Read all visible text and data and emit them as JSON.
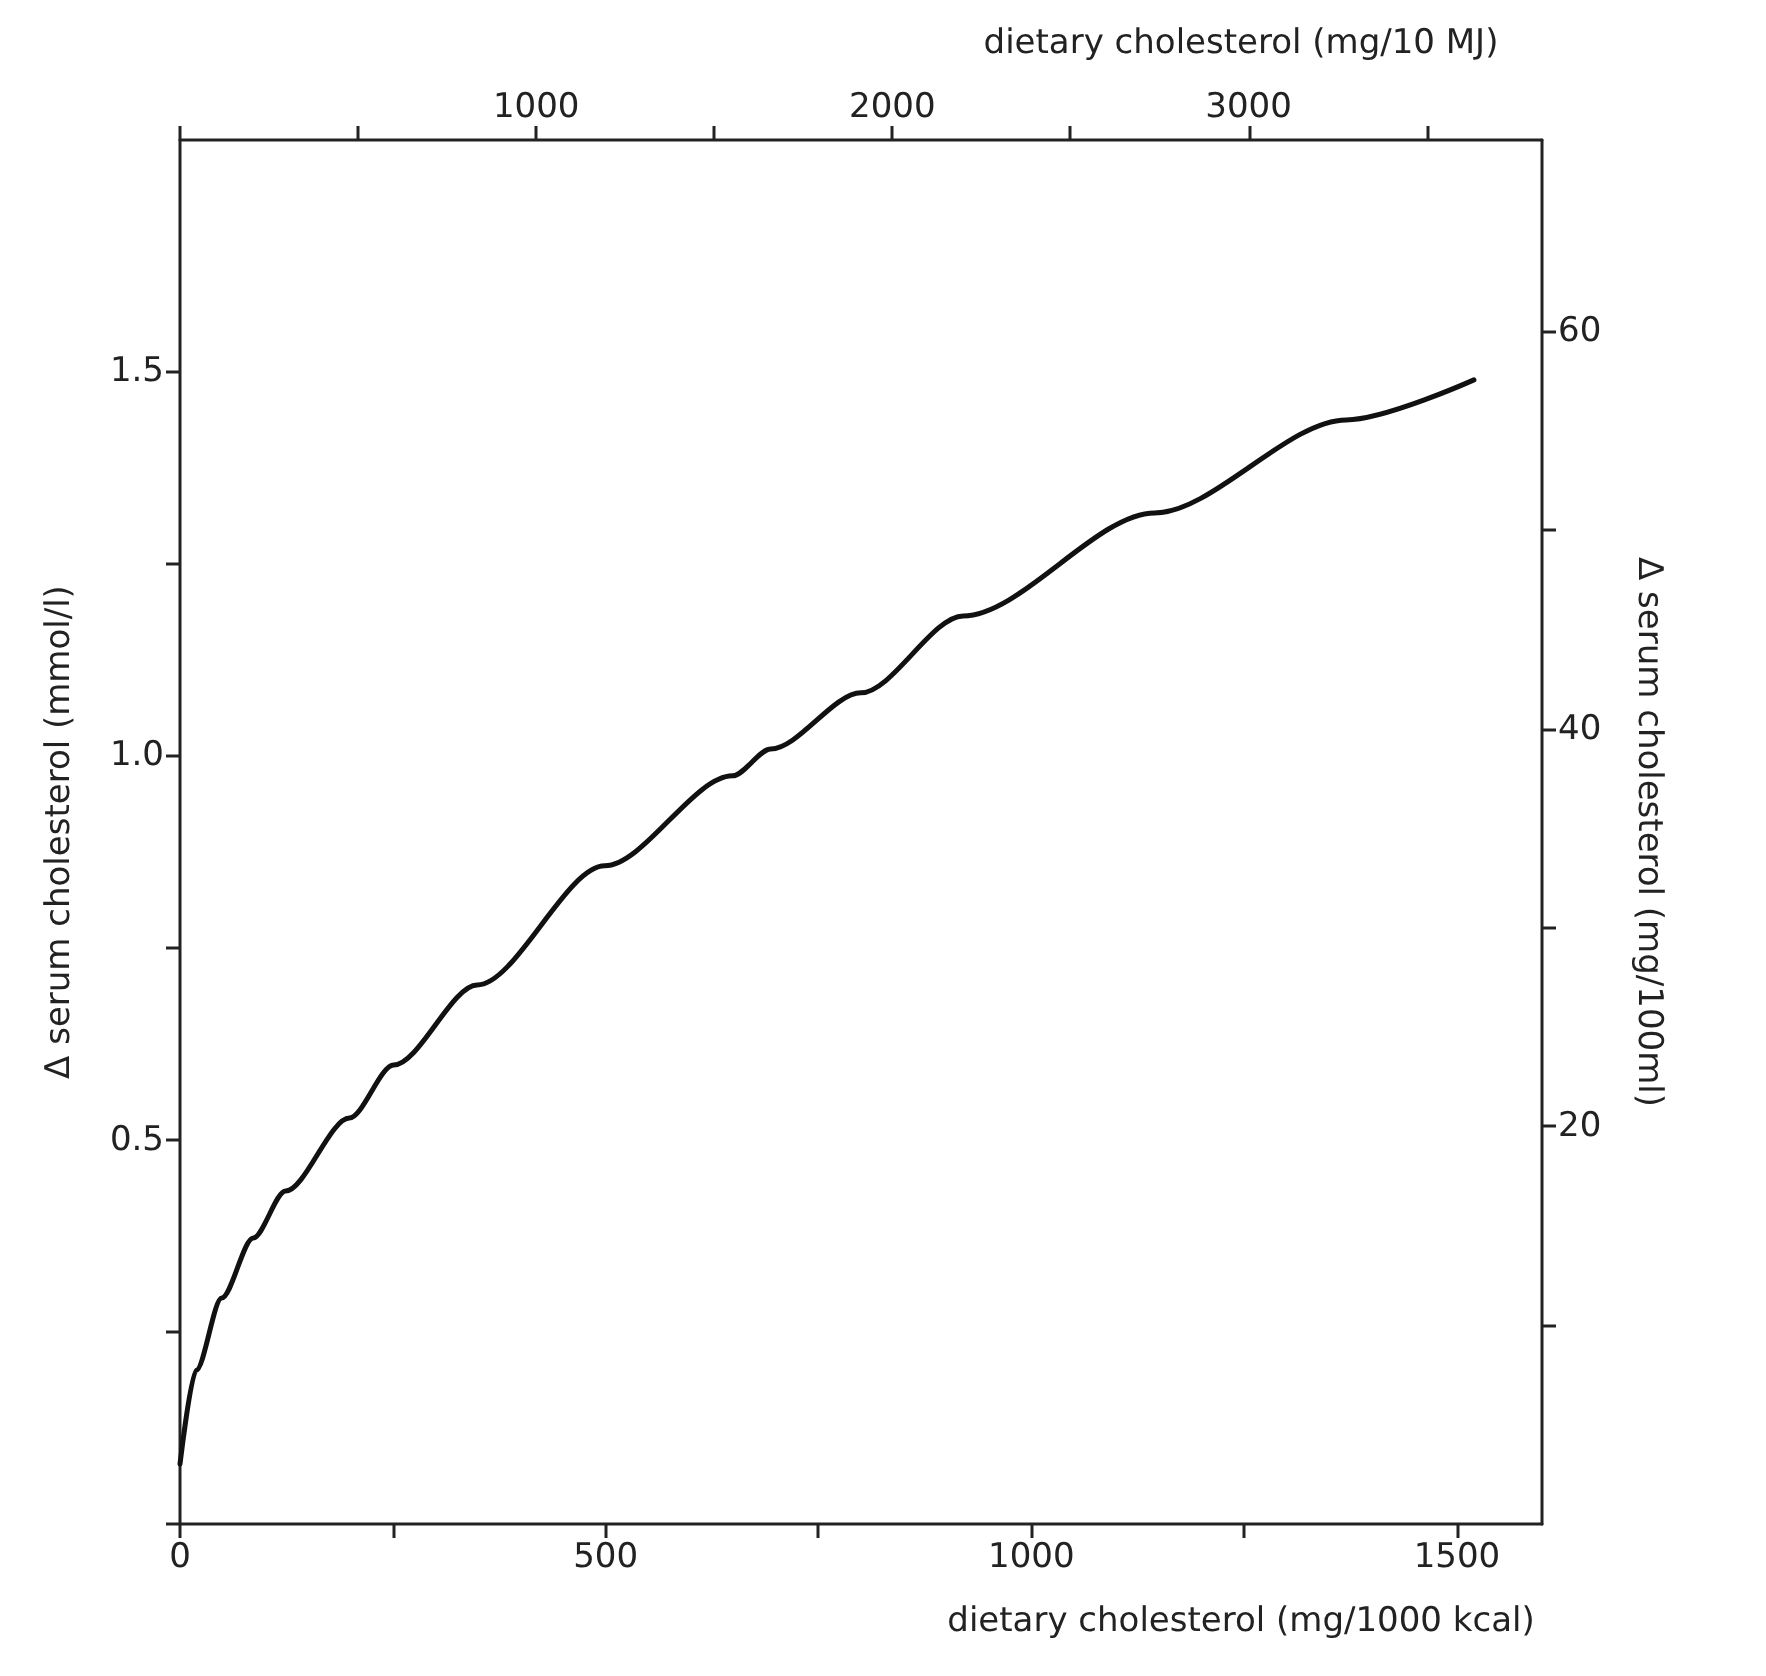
{
  "chart_data": {
    "type": "line",
    "xlabel": "dietary cholesterol (mg/1000 kcal)",
    "x2label": "dietary cholesterol (mg/10 MJ)",
    "ylabel": "Δ serum cholesterol (mmol/l)",
    "y2label": "Δ serum cholesterol (mg/100ml)",
    "xlim": [
      0,
      1600
    ],
    "xticks": [
      0,
      {
        "value": 250,
        "label": null
      },
      500,
      {
        "value": 750,
        "label": null
      },
      1000,
      {
        "value": 1250,
        "label": null
      },
      1500
    ],
    "x2lim": [
      0,
      3824
    ],
    "x2ticks": [
      {
        "value": 0,
        "label": null
      },
      {
        "value": 500,
        "label": null
      },
      1000,
      {
        "value": 1500,
        "label": null
      },
      2000,
      {
        "value": 2500,
        "label": null
      },
      3000,
      {
        "value": 3500,
        "label": null
      }
    ],
    "ylim": [
      0,
      1.8
    ],
    "yticks": [
      {
        "value": 0,
        "label": null
      },
      {
        "value": 0.25,
        "label": null
      },
      0.5,
      {
        "value": 0.75,
        "label": null
      },
      {
        "value": 1,
        "label": "1.0"
      },
      {
        "value": 1.25,
        "label": null
      },
      1.5
    ],
    "y2lim": [
      0,
      69.6
    ],
    "y2ticks": [
      {
        "value": 10,
        "label": null
      },
      20,
      {
        "value": 30,
        "label": null
      },
      40,
      {
        "value": 50,
        "label": null
      },
      60
    ],
    "series": [
      {
        "color": "#111111",
        "x": [
          0,
          19,
          49,
          86,
          124,
          199,
          251,
          349,
          499,
          649,
          694,
          800,
          920,
          1145,
          1370,
          1520
        ],
        "values": [
          0.078,
          0.2,
          0.294,
          0.372,
          0.433,
          0.528,
          0.597,
          0.701,
          0.856,
          0.973,
          1.008,
          1.081,
          1.181,
          1.315,
          1.436,
          1.488
        ]
      }
    ],
    "grid": false,
    "marker": "none",
    "line_style": "solid"
  }
}
